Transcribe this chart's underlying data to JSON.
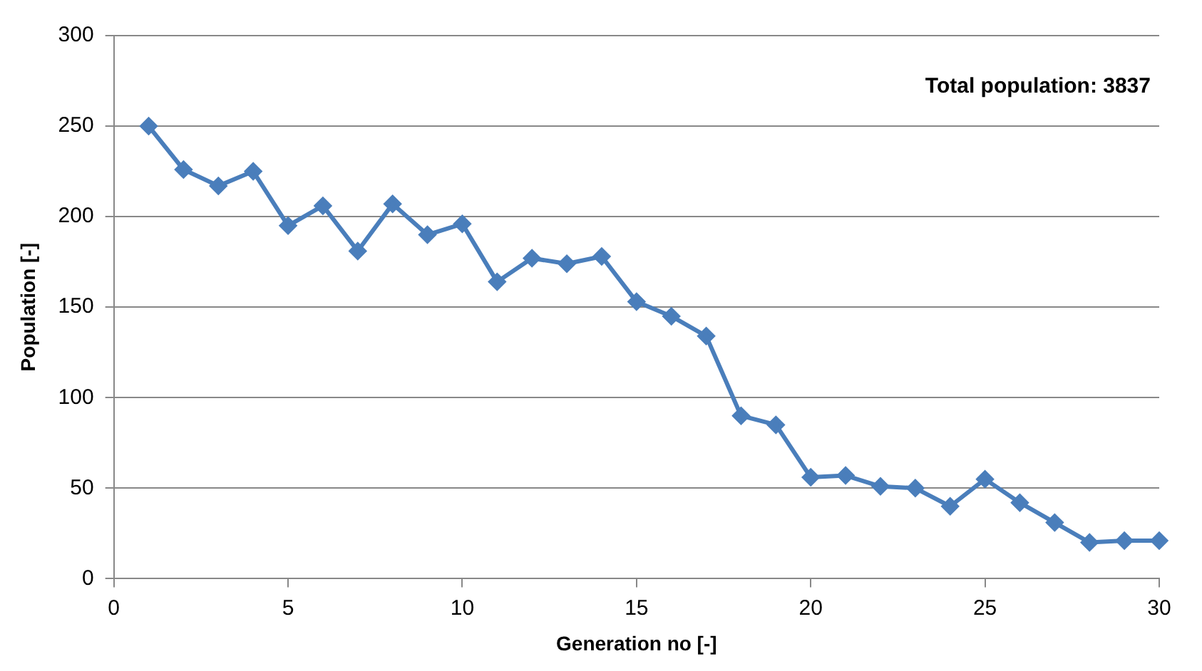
{
  "chart_data": {
    "type": "line",
    "xlabel": "Generation no [-]",
    "ylabel": "Population [-]",
    "annotations": [
      "Total population: 3837"
    ],
    "x": [
      1,
      2,
      3,
      4,
      5,
      6,
      7,
      8,
      9,
      10,
      11,
      12,
      13,
      14,
      15,
      16,
      17,
      18,
      19,
      20,
      21,
      22,
      23,
      24,
      25,
      26,
      27,
      28,
      29,
      30
    ],
    "series": [
      {
        "color": "#4a7ebb",
        "values": [
          250,
          226,
          217,
          225,
          195,
          206,
          181,
          207,
          190,
          196,
          164,
          177,
          174,
          178,
          153,
          145,
          134,
          90,
          85,
          56,
          57,
          51,
          50,
          40,
          55,
          42,
          31,
          20,
          21,
          21
        ]
      }
    ],
    "xlim": [
      0,
      30
    ],
    "xticks": [
      0,
      5,
      10,
      15,
      20,
      25,
      30
    ],
    "ylim": [
      0,
      300
    ],
    "yticks": [
      0,
      50,
      100,
      150,
      200,
      250,
      300
    ],
    "grid": "y",
    "legend": false,
    "marker": "diamond",
    "line_style": "solid"
  }
}
